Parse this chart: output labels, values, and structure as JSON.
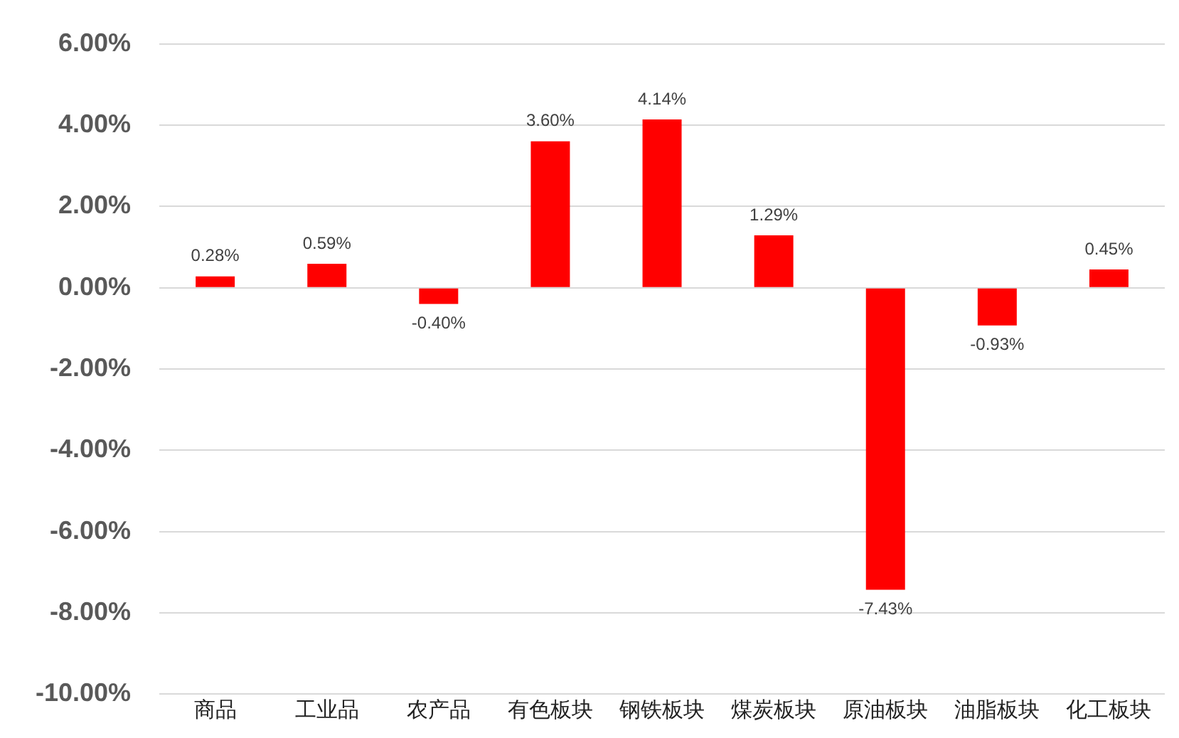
{
  "chart_data": {
    "type": "bar",
    "categories": [
      "商品",
      "工业品",
      "农产品",
      "有色板块",
      "钢铁板块",
      "煤炭板块",
      "原油板块",
      "油脂板块",
      "化工板块"
    ],
    "values": [
      0.28,
      0.59,
      -0.4,
      3.6,
      4.14,
      1.29,
      -7.43,
      -0.93,
      0.45
    ],
    "value_labels": [
      "0.28%",
      "0.59%",
      "-0.40%",
      "3.60%",
      "4.14%",
      "1.29%",
      "-7.43%",
      "-0.93%",
      "0.45%"
    ],
    "color": "#ff0000",
    "ylim": [
      -10,
      6
    ],
    "yticks": [
      {
        "value": -10,
        "label": "-10.00%"
      },
      {
        "value": -8,
        "label": "-8.00%"
      },
      {
        "value": -6,
        "label": "-6.00%"
      },
      {
        "value": -4,
        "label": "-4.00%"
      },
      {
        "value": -2,
        "label": "-2.00%"
      },
      {
        "value": 0,
        "label": "0.00%"
      },
      {
        "value": 2,
        "label": "2.00%"
      },
      {
        "value": 4,
        "label": "4.00%"
      },
      {
        "value": 6,
        "label": "6.00%"
      }
    ],
    "grid": "y",
    "legend": false
  }
}
